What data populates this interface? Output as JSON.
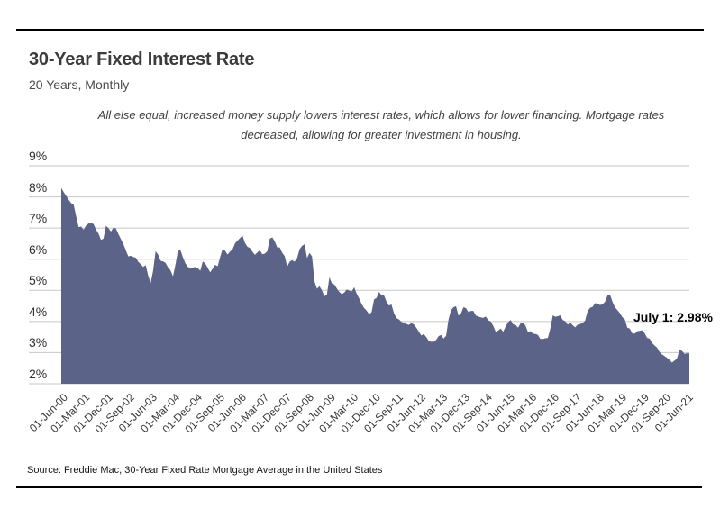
{
  "header": {
    "title": "30-Year Fixed Interest Rate",
    "subtitle": "20 Years, Monthly"
  },
  "note": "All else equal, increased money supply lowers interest rates, which allows for lower financing. Mortgage rates decreased, allowing for greater investment in housing.",
  "source": "Source:  Freddie Mac, 30-Year Fixed Rate Mortgage Average in the United States",
  "colors": {
    "area": "#5c6389",
    "gridline": "#c7c7c7",
    "rule": "#000000",
    "annotation_text": "#000000"
  },
  "chart_data": {
    "type": "area",
    "title": "30-Year Fixed Interest Rate",
    "frequency": "monthly",
    "start_month": "2000-06",
    "end_month": "2021-07",
    "unit": "%",
    "ylim": [
      2,
      9
    ],
    "grid": "horizontal",
    "legend": "none",
    "area_color": "#5c6389",
    "yticks": [
      "9%",
      "8%",
      "7%",
      "6%",
      "5%",
      "4%",
      "3%",
      "2%"
    ],
    "xtick_interval_months": 9,
    "xticks": [
      "01-Jun-00",
      "01-Mar-01",
      "01-Dec-01",
      "01-Sep-02",
      "01-Jun-03",
      "01-Mar-04",
      "01-Dec-04",
      "01-Sep-05",
      "01-Jun-06",
      "01-Mar-07",
      "01-Dec-07",
      "01-Sep-08",
      "01-Jun-09",
      "01-Mar-10",
      "01-Dec-10",
      "01-Sep-11",
      "01-Jun-12",
      "01-Mar-13",
      "01-Dec-13",
      "01-Sep-14",
      "01-Jun-15",
      "01-Mar-16",
      "01-Dec-16",
      "01-Sep-17",
      "01-Jun-18",
      "01-Mar-19",
      "01-Dec-19",
      "01-Sep-20",
      "01-Jun-21"
    ],
    "values": [
      8.29,
      8.15,
      8.03,
      7.91,
      7.8,
      7.75,
      7.38,
      7.03,
      7.05,
      6.95,
      7.08,
      7.15,
      7.16,
      7.13,
      6.95,
      6.82,
      6.62,
      6.66,
      7.07,
      7.0,
      6.89,
      7.01,
      6.99,
      6.81,
      6.65,
      6.49,
      6.29,
      6.09,
      6.11,
      6.07,
      6.05,
      5.92,
      5.84,
      5.75,
      5.81,
      5.48,
      5.23,
      5.63,
      6.26,
      6.15,
      5.95,
      5.93,
      5.88,
      5.74,
      5.64,
      5.45,
      5.83,
      6.27,
      6.29,
      6.06,
      5.87,
      5.75,
      5.72,
      5.73,
      5.75,
      5.71,
      5.63,
      5.93,
      5.86,
      5.72,
      5.58,
      5.7,
      5.82,
      5.77,
      6.07,
      6.33,
      6.27,
      6.15,
      6.25,
      6.32,
      6.51,
      6.6,
      6.68,
      6.76,
      6.52,
      6.4,
      6.36,
      6.24,
      6.14,
      6.22,
      6.29,
      6.16,
      6.18,
      6.26,
      6.66,
      6.7,
      6.57,
      6.38,
      6.38,
      6.21,
      6.1,
      5.76,
      5.92,
      5.97,
      5.92,
      6.04,
      6.32,
      6.43,
      6.48,
      6.04,
      6.2,
      6.09,
      5.29,
      5.05,
      5.13,
      5.0,
      4.81,
      4.86,
      5.42,
      5.22,
      5.19,
      5.06,
      4.95,
      4.88,
      4.93,
      5.03,
      4.99,
      4.97,
      5.1,
      4.89,
      4.74,
      4.56,
      4.43,
      4.35,
      4.23,
      4.3,
      4.71,
      4.76,
      4.95,
      4.84,
      4.84,
      4.64,
      4.51,
      4.55,
      4.27,
      4.11,
      4.07,
      3.99,
      3.96,
      3.92,
      3.89,
      3.95,
      3.91,
      3.8,
      3.68,
      3.55,
      3.6,
      3.5,
      3.38,
      3.35,
      3.35,
      3.41,
      3.53,
      3.57,
      3.45,
      3.54,
      4.07,
      4.37,
      4.46,
      4.49,
      4.19,
      4.26,
      4.46,
      4.43,
      4.3,
      4.34,
      4.34,
      4.19,
      4.16,
      4.13,
      4.12,
      4.16,
      4.04,
      4.0,
      3.86,
      3.67,
      3.71,
      3.77,
      3.67,
      3.84,
      3.98,
      4.05,
      3.91,
      3.89,
      3.8,
      3.94,
      3.96,
      3.87,
      3.66,
      3.69,
      3.61,
      3.6,
      3.57,
      3.44,
      3.44,
      3.46,
      3.47,
      3.77,
      4.2,
      4.15,
      4.17,
      4.2,
      4.05,
      4.01,
      3.9,
      3.97,
      3.88,
      3.81,
      3.9,
      3.92,
      3.95,
      4.03,
      4.33,
      4.44,
      4.47,
      4.59,
      4.57,
      4.53,
      4.55,
      4.63,
      4.83,
      4.87,
      4.64,
      4.46,
      4.37,
      4.27,
      4.14,
      4.07,
      3.8,
      3.77,
      3.62,
      3.61,
      3.69,
      3.7,
      3.72,
      3.62,
      3.47,
      3.45,
      3.31,
      3.23,
      3.16,
      3.02,
      2.94,
      2.89,
      2.83,
      2.77,
      2.68,
      2.74,
      2.81,
      3.08,
      3.06,
      2.96,
      2.98,
      2.98
    ],
    "last_point_label": "July 1: 2.98%",
    "last_value": 2.98
  }
}
